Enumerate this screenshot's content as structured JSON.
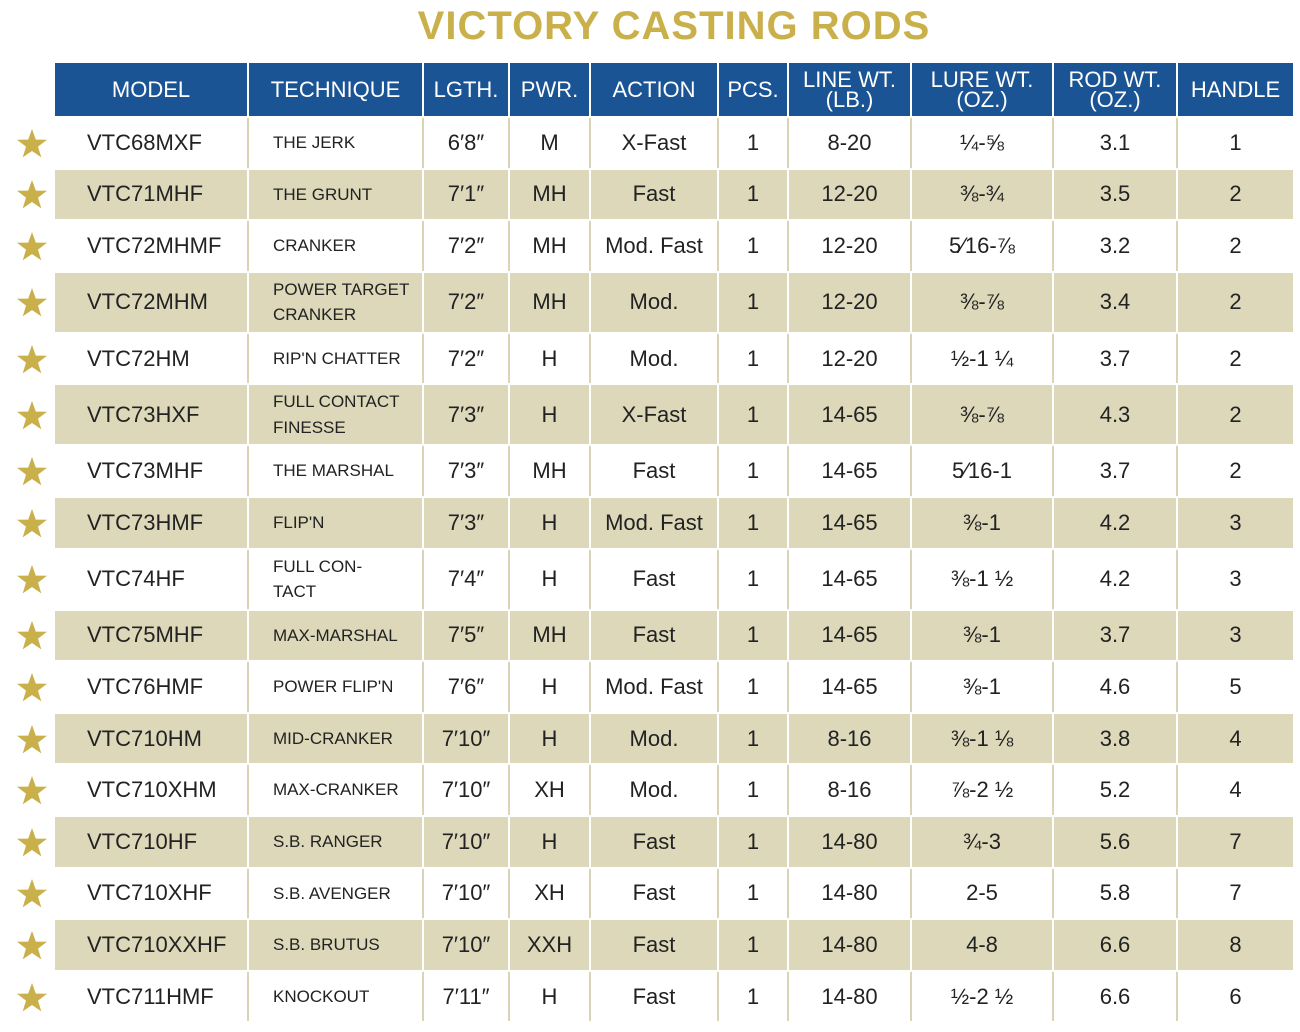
{
  "title": "VICTORY CASTING RODS",
  "table": {
    "header": [
      "MODEL",
      "TECHNIQUE",
      "LGTH.",
      "PWR.",
      "ACTION",
      "PCS.",
      "LINE WT.\n(LB.)",
      "LURE WT.\n(OZ.)",
      "ROD WT.\n(OZ.)",
      "HANDLE"
    ],
    "rows": [
      [
        "VTC68MXF",
        "THE JERK",
        "6′8″",
        "M",
        "X-Fast",
        "1",
        "8-20",
        "¼-⅝",
        "3.1",
        "1"
      ],
      [
        "VTC71MHF",
        "THE GRUNT",
        "7′1″",
        "MH",
        "Fast",
        "1",
        "12-20",
        "⅜-¾",
        "3.5",
        "2"
      ],
      [
        "VTC72MHMF",
        "CRANKER",
        "7′2″",
        "MH",
        "Mod. Fast",
        "1",
        "12-20",
        "5⁄16-⅞",
        "3.2",
        "2"
      ],
      [
        "VTC72MHM",
        "POWER TARGET\nCRANKER",
        "7′2″",
        "MH",
        "Mod.",
        "1",
        "12-20",
        "⅜-⅞",
        "3.4",
        "2"
      ],
      [
        "VTC72HM",
        "RIP'N CHATTER",
        "7′2″",
        "H",
        "Mod.",
        "1",
        "12-20",
        "½-1 ¼",
        "3.7",
        "2"
      ],
      [
        "VTC73HXF",
        "FULL CONTACT\nFINESSE",
        "7′3″",
        "H",
        "X-Fast",
        "1",
        "14-65",
        "⅜-⅞",
        "4.3",
        "2"
      ],
      [
        "VTC73MHF",
        "THE MARSHAL",
        "7′3″",
        "MH",
        "Fast",
        "1",
        "14-65",
        "5⁄16-1",
        "3.7",
        "2"
      ],
      [
        "VTC73HMF",
        "FLIP'N",
        "7′3″",
        "H",
        "Mod. Fast",
        "1",
        "14-65",
        "⅜-1",
        "4.2",
        "3"
      ],
      [
        "VTC74HF",
        "FULL CON-\nTACT",
        "7′4″",
        "H",
        "Fast",
        "1",
        "14-65",
        "⅜-1 ½",
        "4.2",
        "3"
      ],
      [
        "VTC75MHF",
        "MAX-MARSHAL",
        "7′5″",
        "MH",
        "Fast",
        "1",
        "14-65",
        "⅜-1",
        "3.7",
        "3"
      ],
      [
        "VTC76HMF",
        "POWER FLIP'N",
        "7′6″",
        "H",
        "Mod. Fast",
        "1",
        "14-65",
        "⅜-1",
        "4.6",
        "5"
      ],
      [
        "VTC710HM",
        "MID-CRANKER",
        "7′10″",
        "H",
        "Mod.",
        "1",
        "8-16",
        "⅜-1 ⅛",
        "3.8",
        "4"
      ],
      [
        "VTC710XHM",
        "MAX-CRANKER",
        "7′10″",
        "XH",
        "Mod.",
        "1",
        "8-16",
        "⅞-2 ½",
        "5.2",
        "4"
      ],
      [
        "VTC710HF",
        "S.B. RANGER",
        "7′10″",
        "H",
        "Fast",
        "1",
        "14-80",
        "¾-3",
        "5.6",
        "7"
      ],
      [
        "VTC710XHF",
        "S.B. AVENGER",
        "7′10″",
        "XH",
        "Fast",
        "1",
        "14-80",
        "2-5",
        "5.8",
        "7"
      ],
      [
        "VTC710XXHF",
        "S.B. BRUTUS",
        "7′10″",
        "XXH",
        "Fast",
        "1",
        "14-80",
        "4-8",
        "6.6",
        "8"
      ],
      [
        "VTC711HMF",
        "KNOCKOUT",
        "7′11″",
        "H",
        "Fast",
        "1",
        "14-80",
        "½-2 ½",
        "6.6",
        "6"
      ]
    ]
  }
}
